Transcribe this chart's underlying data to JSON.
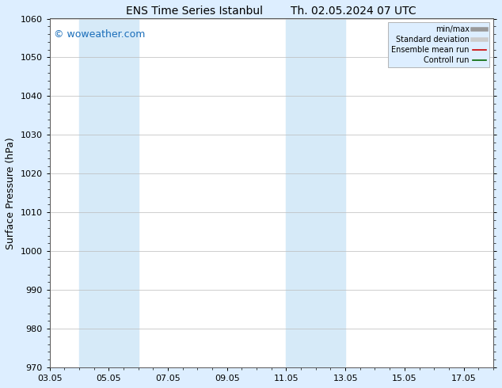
{
  "title_left": "ENS Time Series Istanbul",
  "title_right": "Th. 02.05.2024 07 UTC",
  "ylabel": "Surface Pressure (hPa)",
  "ylim": [
    970,
    1060
  ],
  "yticks": [
    970,
    980,
    990,
    1000,
    1010,
    1020,
    1030,
    1040,
    1050,
    1060
  ],
  "xlim": [
    0,
    15
  ],
  "xtick_labels": [
    "03.05",
    "05.05",
    "07.05",
    "09.05",
    "11.05",
    "13.05",
    "15.05",
    "17.05"
  ],
  "xtick_positions": [
    0,
    2,
    4,
    6,
    8,
    10,
    12,
    14
  ],
  "shade_bands": [
    {
      "x_start": 1,
      "x_end": 3,
      "color": "#d6eaf8"
    },
    {
      "x_start": 8,
      "x_end": 10,
      "color": "#d6eaf8"
    }
  ],
  "watermark_text": "© woweather.com",
  "watermark_color": "#1a6eba",
  "watermark_fontsize": 9,
  "legend_items": [
    {
      "label": "min/max",
      "color": "#999999",
      "lw": 4,
      "type": "line"
    },
    {
      "label": "Standard deviation",
      "color": "#cccccc",
      "lw": 4,
      "type": "line"
    },
    {
      "label": "Ensemble mean run",
      "color": "#cc0000",
      "lw": 1.2,
      "type": "line"
    },
    {
      "label": "Controll run",
      "color": "#006600",
      "lw": 1.2,
      "type": "line"
    }
  ],
  "bg_color": "#ddeeff",
  "plot_bg_color": "#ffffff",
  "title_fontsize": 10,
  "tick_fontsize": 8,
  "ylabel_fontsize": 9
}
